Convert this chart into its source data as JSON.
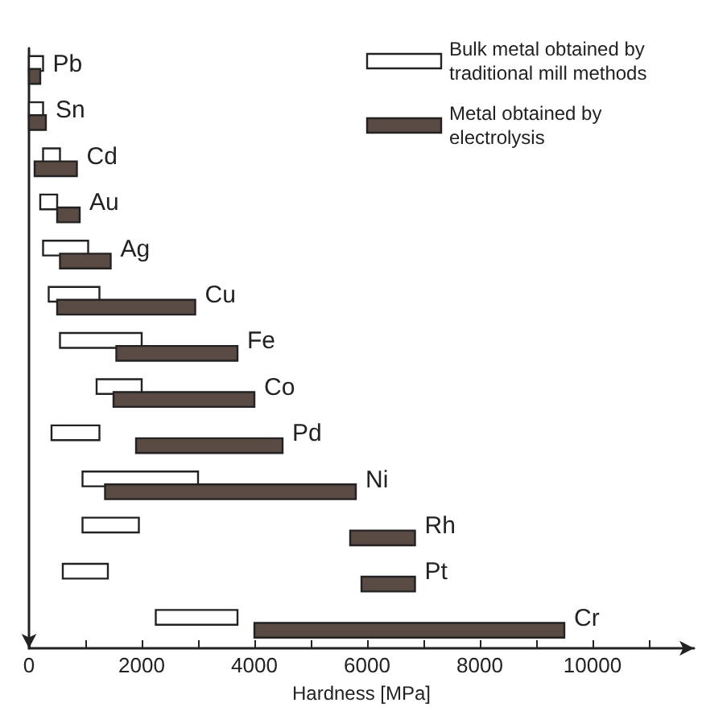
{
  "chart_data": {
    "type": "bar",
    "orientation": "horizontal",
    "xlabel": "Hardness [MPa]",
    "categories": [
      "Pb",
      "Sn",
      "Cd",
      "Au",
      "Ag",
      "Cu",
      "Fe",
      "Co",
      "Pd",
      "Ni",
      "Rh",
      "Pt",
      "Cr"
    ],
    "series": [
      {
        "name": "Bulk metal obtained by traditional mill methods",
        "color": "#ffffff",
        "base": [
          0,
          0,
          250,
          200,
          250,
          350,
          550,
          1200,
          400,
          950,
          950,
          600,
          2250
        ],
        "values": [
          250,
          250,
          300,
          300,
          800,
          900,
          1450,
          800,
          850,
          2050,
          1000,
          800,
          1450
        ]
      },
      {
        "name": "Metal obtained by electrolysis",
        "color": "#5a4a44",
        "base": [
          0,
          0,
          100,
          500,
          550,
          500,
          1550,
          1500,
          1900,
          1350,
          5700,
          5900,
          4000
        ],
        "values": [
          200,
          300,
          750,
          400,
          900,
          2450,
          2150,
          2500,
          2600,
          4450,
          1150,
          950,
          5500
        ]
      }
    ],
    "xlim": [
      0,
      11800
    ],
    "xticks": [
      0,
      {
        "value": 1000,
        "label": null
      },
      2000,
      {
        "value": 3000,
        "label": null
      },
      4000,
      {
        "value": 5000,
        "label": null
      },
      6000,
      {
        "value": 7000,
        "label": null
      },
      8000,
      {
        "value": 9000,
        "label": null
      },
      10000,
      {
        "value": 11000,
        "label": null
      }
    ],
    "grid": false,
    "legend": "top right",
    "tick_labels": "x"
  }
}
